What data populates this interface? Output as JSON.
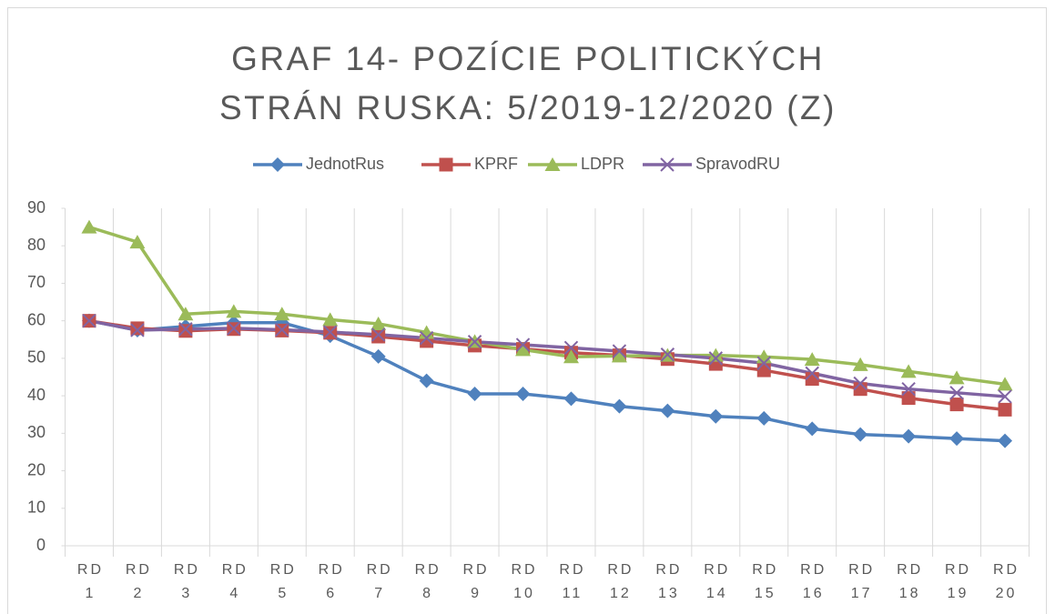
{
  "chart_data": {
    "type": "line",
    "title": "GRAF 14- POZÍCIE POLITICKÝCH STRÁN RUSKA: 5/2019-12/2020 (Z)",
    "categories": [
      "RD 1",
      "RD 2",
      "RD 3",
      "RD 4",
      "RD 5",
      "RD 6",
      "RD 7",
      "RD 8",
      "RD 9",
      "RD 10",
      "RD 11",
      "RD 12",
      "RD 13",
      "RD 14",
      "RD 15",
      "RD 16",
      "RD 17",
      "RD 18",
      "RD 19",
      "RD 20"
    ],
    "series": [
      {
        "name": "JednotRus",
        "color": "#4f81bd",
        "marker": "diamond",
        "values": [
          60,
          57.5,
          58.5,
          59.5,
          59.5,
          56,
          50.5,
          44,
          40.5,
          40.5,
          39.2,
          37.2,
          36,
          34.5,
          34,
          31.2,
          29.7,
          29.2,
          28.6,
          28
        ]
      },
      {
        "name": "KPRF",
        "color": "#c0504d",
        "marker": "square",
        "values": [
          60,
          58,
          57.3,
          57.8,
          57.4,
          56.8,
          55.8,
          54.6,
          53.4,
          52.5,
          51.5,
          50.8,
          49.8,
          48.5,
          46.8,
          44.5,
          41.8,
          39.4,
          37.7,
          36.3
        ]
      },
      {
        "name": "LDPR",
        "color": "#9bbb59",
        "marker": "triangle",
        "values": [
          85,
          81,
          61.8,
          62.5,
          61.8,
          60.3,
          59.2,
          56.9,
          54.5,
          52.3,
          50.4,
          50.6,
          50.8,
          50.8,
          50.4,
          49.7,
          48.3,
          46.5,
          44.8,
          43.1
        ]
      },
      {
        "name": "SpravodRU",
        "color": "#8064a2",
        "marker": "x",
        "values": [
          60,
          57.5,
          57.8,
          58,
          57.6,
          57,
          56.3,
          55.4,
          54.4,
          53.6,
          52.8,
          51.9,
          51,
          50,
          48.7,
          46,
          43.3,
          41.8,
          40.8,
          39.8
        ]
      }
    ],
    "ylim": [
      0,
      90
    ],
    "yticks": [
      0,
      10,
      20,
      30,
      40,
      50,
      60,
      70,
      80,
      90
    ],
    "legend": "top"
  }
}
